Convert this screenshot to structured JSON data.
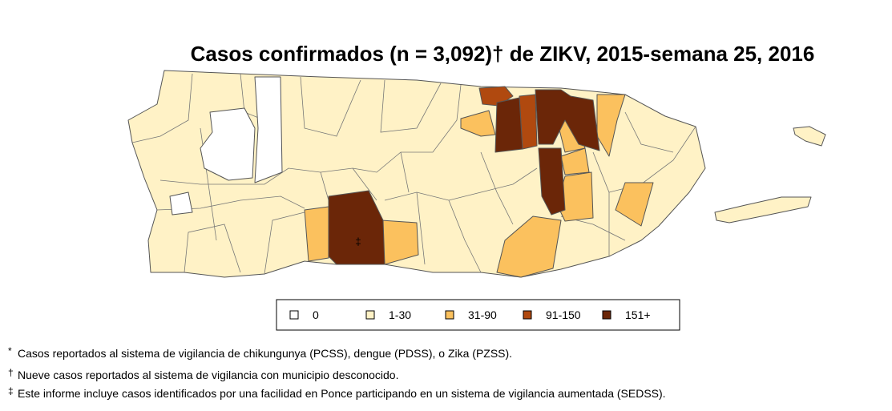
{
  "title": "Casos confirmados (n = 3,092)† de ZIKV, 2015-semana 25, 2016",
  "legend": {
    "items": [
      {
        "label": "0",
        "color": "#ffffff"
      },
      {
        "label": "1-30",
        "color": "#fff2c6"
      },
      {
        "label": "31-90",
        "color": "#fbc15e"
      },
      {
        "label": "91-150",
        "color": "#b0490f"
      },
      {
        "label": "151+",
        "color": "#6b2608"
      }
    ]
  },
  "map": {
    "annotation": "‡"
  },
  "footnotes": [
    {
      "mark": "*",
      "text": "Casos reportados al sistema de vigilancia de chikungunya (PCSS), dengue (PDSS), o Zika (PZSS)."
    },
    {
      "mark": "†",
      "text": "Nueve casos reportados al sistema de vigilancia con municipio desconocido."
    },
    {
      "mark": "‡",
      "text": "Este informe incluye casos identificados por una facilidad en Ponce participando en un sistema de vigilancia aumentada (SEDSS)."
    }
  ]
}
